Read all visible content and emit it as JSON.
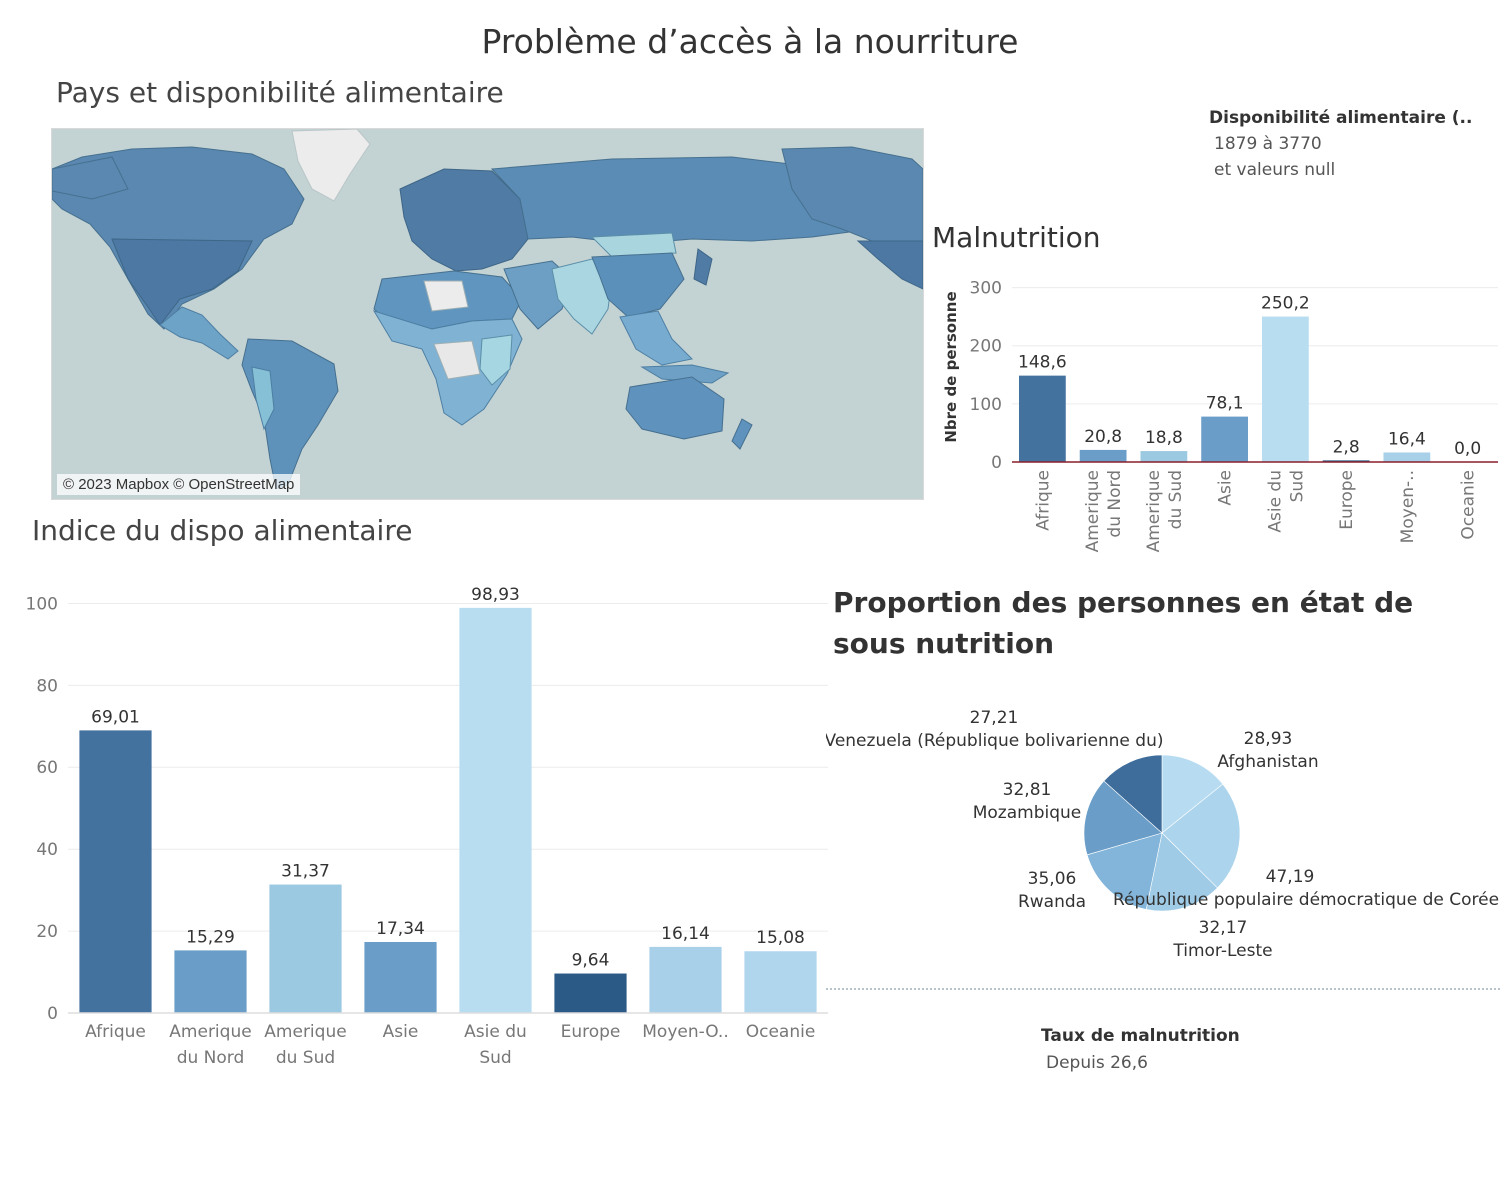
{
  "page_title": "Problème d’accès à la nourriture",
  "map": {
    "title": "Pays et disponibilité alimentaire",
    "credit": "© 2023 Mapbox © OpenStreetMap",
    "legend": {
      "title": "Disponibilité alimentaire (..",
      "range": "1879 à 3770",
      "null_label": "et valeurs null"
    },
    "colors": {
      "ocean": "#c3d2d3",
      "high": "#4e7ea6",
      "mid": "#6b9fc4",
      "low": "#a9d5df",
      "null": "#ececec"
    }
  },
  "malnutrition": {
    "title": "Malnutrition"
  },
  "indice": {
    "title": "Indice du dispo alimentaire"
  },
  "proportion": {
    "title": "Proportion des personnes en état de sous nutrition"
  },
  "taux_legend": {
    "title": "Taux de malnutrition",
    "value": "Depuis 26,6"
  },
  "chart_data": [
    {
      "id": "malnutrition",
      "type": "bar",
      "title": "Malnutrition",
      "ylabel": "Nbre de personne",
      "xlabel": "",
      "ylim": [
        0,
        320
      ],
      "yticks": [
        0,
        100,
        200,
        300
      ],
      "categories": [
        [
          "Afrique"
        ],
        [
          "Amerique",
          "du Nord"
        ],
        [
          "Amerique",
          "du Sud"
        ],
        [
          "Asie"
        ],
        [
          "Asie du",
          "Sud"
        ],
        [
          "Europe"
        ],
        [
          "Moyen-.."
        ],
        [
          "Oceanie"
        ]
      ],
      "values": [
        148.6,
        20.8,
        18.8,
        78.1,
        250.2,
        2.8,
        16.4,
        0.0
      ],
      "labels": [
        "148,6",
        "20,8",
        "18,8",
        "78,1",
        "250,2",
        "2,8",
        "16,4",
        "0,0"
      ],
      "colors": [
        "#44729f",
        "#6a9ec8",
        "#9cc9e2",
        "#6a9ec8",
        "#b8ddf0",
        "#2c5a86",
        "#a8d0e8",
        "#b8ddf0"
      ]
    },
    {
      "id": "indice",
      "type": "bar",
      "title": "Indice du dispo alimentaire",
      "xlabel": "",
      "ylabel": "",
      "ylim": [
        0,
        105
      ],
      "yticks": [
        0,
        20,
        40,
        60,
        80,
        100
      ],
      "categories": [
        [
          "Afrique"
        ],
        [
          "Amerique",
          "du Nord"
        ],
        [
          "Amerique",
          "du Sud"
        ],
        [
          "Asie"
        ],
        [
          "Asie du",
          "Sud"
        ],
        [
          "Europe"
        ],
        [
          "Moyen-O.."
        ],
        [
          "Oceanie"
        ]
      ],
      "values": [
        69.01,
        15.29,
        31.37,
        17.34,
        98.93,
        9.64,
        16.14,
        15.08
      ],
      "labels": [
        "69,01",
        "15,29",
        "31,37",
        "17,34",
        "98,93",
        "9,64",
        "16,14",
        "15,08"
      ],
      "colors": [
        "#44729f",
        "#6a9ec8",
        "#9cc9e2",
        "#6a9ec8",
        "#b8ddf0",
        "#2c5a86",
        "#a8d0e8",
        "#b0d6ee"
      ]
    },
    {
      "id": "proportion",
      "type": "pie",
      "title": "Proportion des personnes en état de sous nutrition",
      "slices": [
        {
          "name": "Afghanistan",
          "value": 28.93,
          "label": "28,93",
          "color": "#b7dcf1"
        },
        {
          "name": "République populaire démocratique de Corée",
          "value": 47.19,
          "label": "47,19",
          "color": "#acd4ec"
        },
        {
          "name": "Timor-Leste",
          "value": 32.17,
          "label": "32,17",
          "color": "#9fcbe6"
        },
        {
          "name": "Rwanda",
          "value": 35.06,
          "label": "35,06",
          "color": "#83b5da"
        },
        {
          "name": "Mozambique",
          "value": 32.81,
          "label": "32,81",
          "color": "#6a9ec8"
        },
        {
          "name": "Venezuela (République bolivarienne du)",
          "value": 27.21,
          "label": "27,21",
          "color": "#3f6d9b"
        }
      ]
    }
  ]
}
